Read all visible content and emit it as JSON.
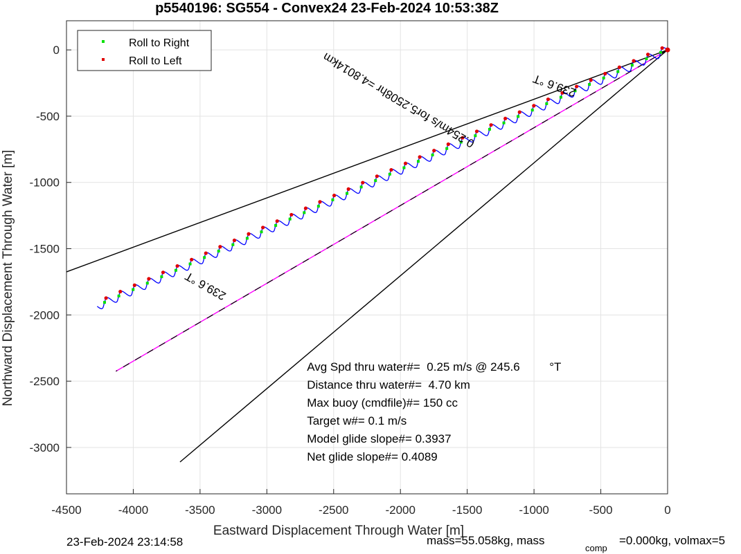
{
  "chart_data": {
    "type": "line",
    "title": "p5540196: SG554 - Convex24 23-Feb-2024 10:53:38Z",
    "xlabel": "Eastward Displacement Through Water [m]",
    "ylabel": "Northward Displacement Through Water [m]",
    "xlim": [
      -4500,
      0
    ],
    "ylim": [
      -3350,
      220
    ],
    "xticks": [
      -4500,
      -4000,
      -3500,
      -3000,
      -2500,
      -2000,
      -1500,
      -1000,
      -500,
      0
    ],
    "yticks": [
      -3000,
      -2500,
      -2000,
      -1500,
      -1000,
      -500,
      0
    ],
    "grid": true,
    "legend": {
      "placement": "top-left",
      "entries": [
        {
          "label": "Roll to Right",
          "color": "#00e000"
        },
        {
          "label": "Roll to Left",
          "color": "#e00000"
        }
      ]
    },
    "track": {
      "name": "",
      "color": "#0000ff",
      "start": [
        0,
        0
      ],
      "end": [
        -4270,
        -1935
      ],
      "wiggle_amplitude_m": 35,
      "wiggle_count": 40
    },
    "lines": [
      {
        "name": "course-line",
        "color": "#ff00ff",
        "dashed_overlay_color": "#000000",
        "x": [
          0,
          -4130
        ],
        "y": [
          0,
          -2425
        ]
      },
      {
        "name": "bound-upper",
        "color": "#000000",
        "x": [
          0,
          -4500
        ],
        "y": [
          0,
          -1675
        ]
      },
      {
        "name": "bound-lower",
        "color": "#000000",
        "x": [
          0,
          -3650
        ],
        "y": [
          0,
          -3110
        ]
      }
    ],
    "rotated_labels": [
      {
        "text": "239.6 °T",
        "anchor": [
          -3300,
          -1840
        ],
        "angle_deg": 209.6
      },
      {
        "text": "239.6 °T",
        "anchor": [
          -680,
          -300
        ],
        "angle_deg": 200
      },
      {
        "text": "0.254m/s for5.2508hr =4.8014km",
        "anchor": [
          -1440,
          -690
        ],
        "angle_deg": 210.8
      }
    ],
    "annotations": [
      "Avg Spd thru water#=  0.25 m/s @ 245.6         °T",
      "Distance thru water#=  4.70 km",
      "Max buoy (cmdfile)#= 150 cc",
      "Target w#= 0.1 m/s",
      "Model glide slope#= 0.3937",
      "Net glide slope#= 0.4089"
    ],
    "annotation_anchor": [
      -2700,
      -2420
    ]
  },
  "footer": {
    "timestamp": "23-Feb-2024 23:14:58",
    "mass_text": "mass=55.058kg, mass",
    "comp_sub": "comp",
    "comp_text": "=0.000kg, volmax=5"
  }
}
